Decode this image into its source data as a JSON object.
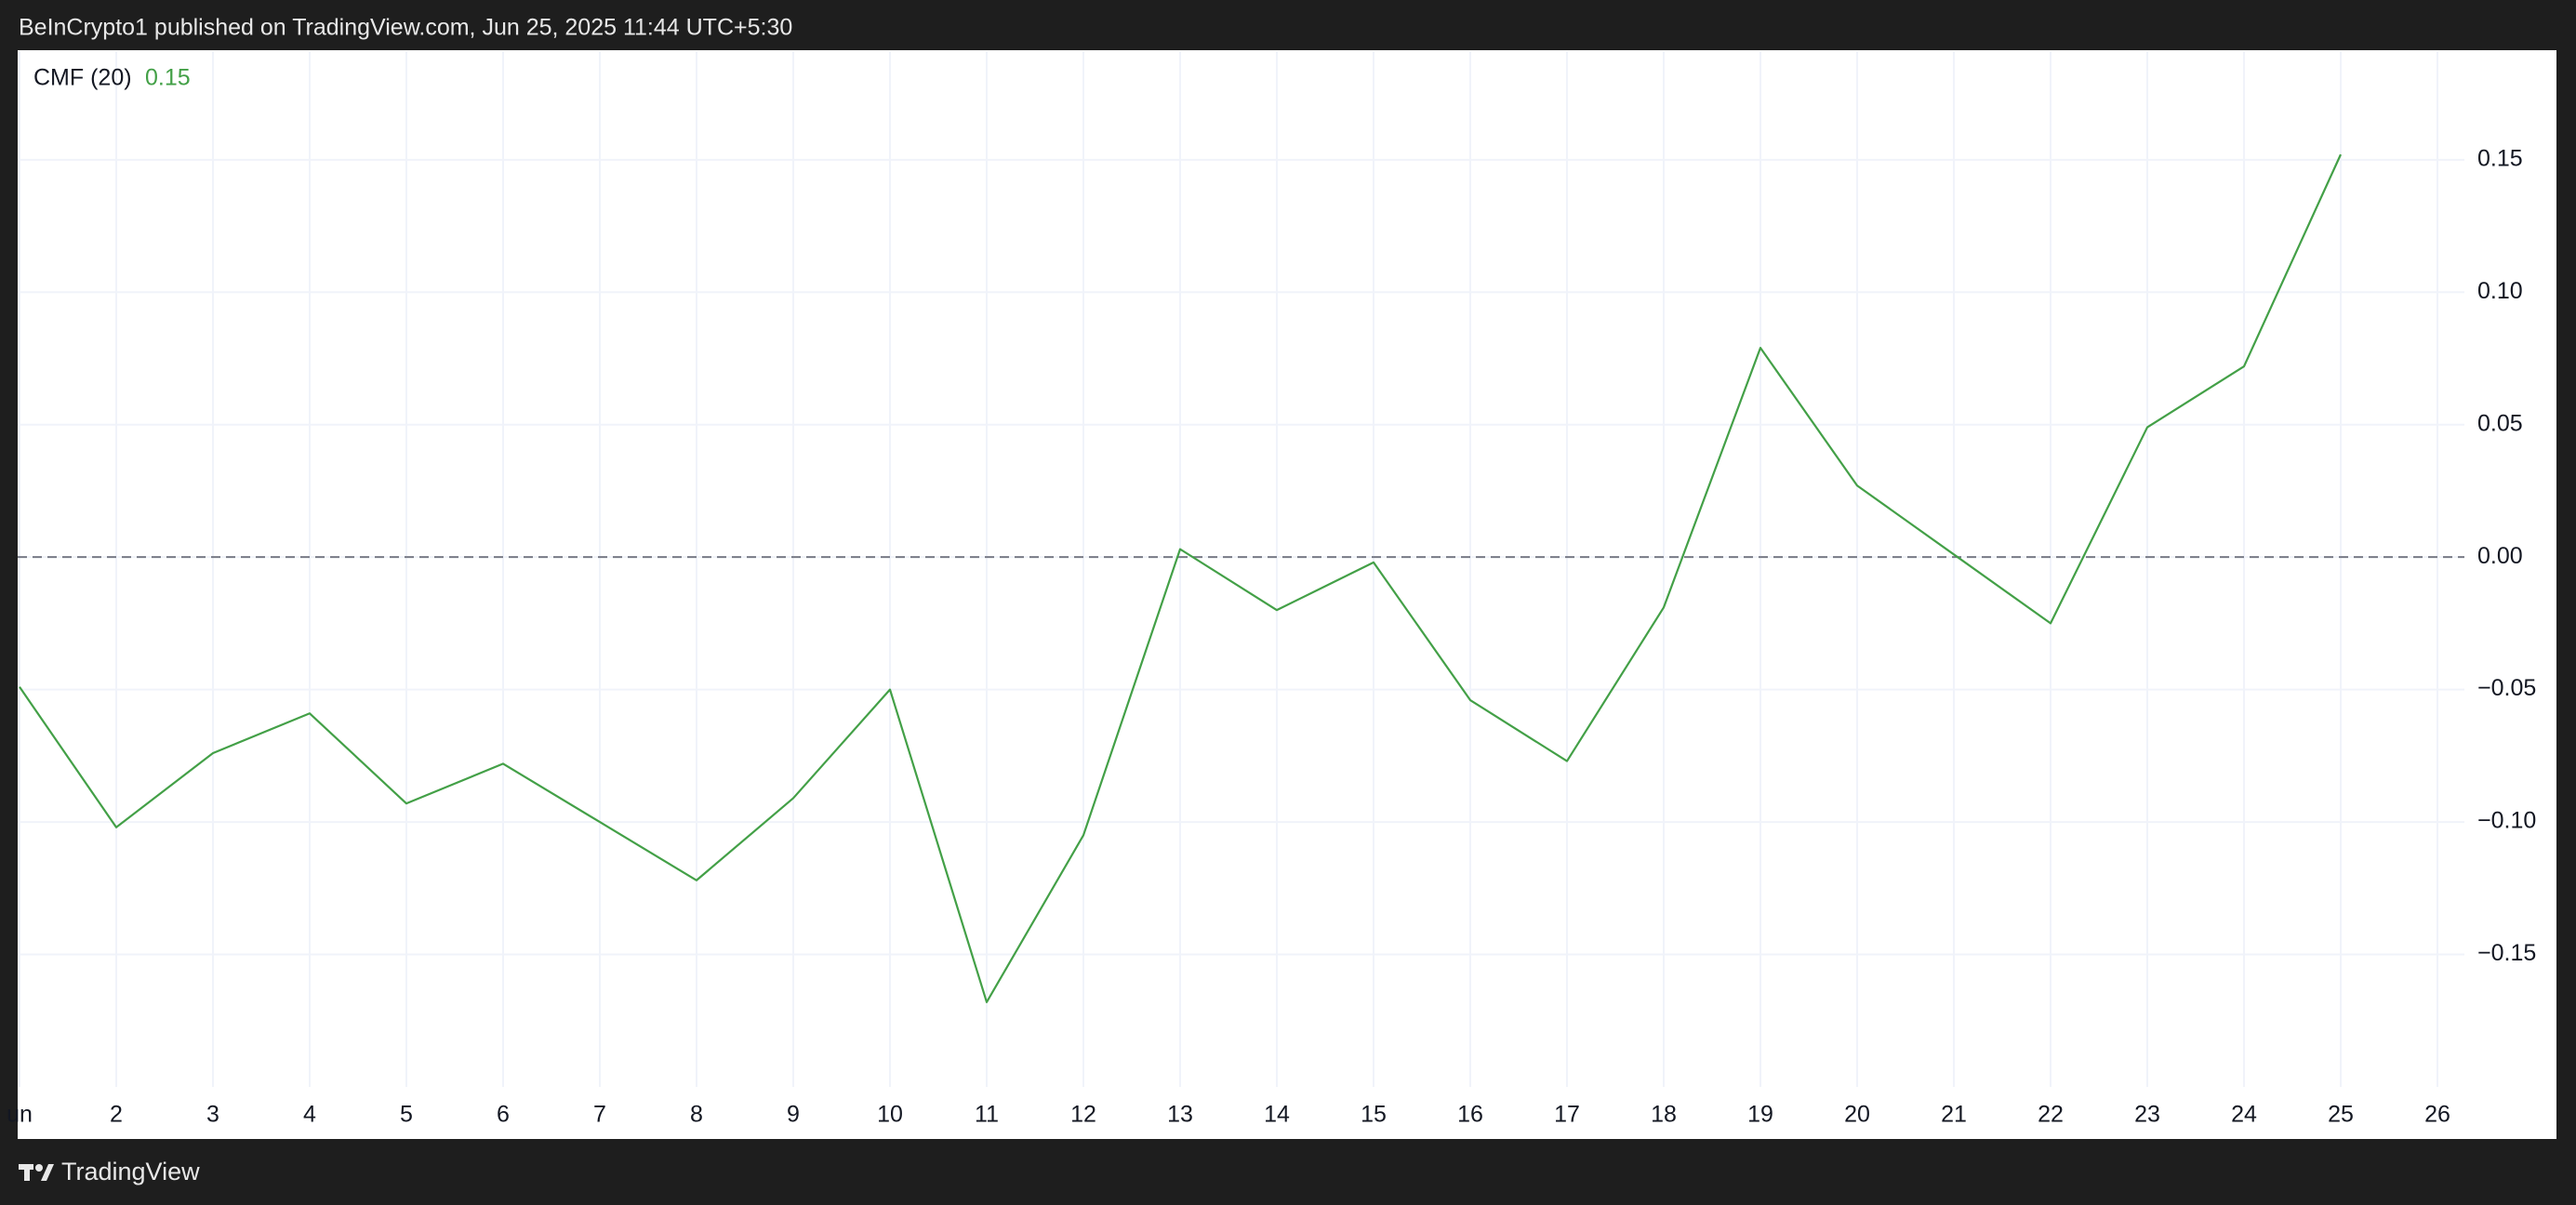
{
  "header": {
    "title": "BeInCrypto1 published on TradingView.com, Jun 25, 2025 11:44 UTC+5:30"
  },
  "footer": {
    "brand": "TradingView"
  },
  "chart_data": {
    "type": "line",
    "indicator": "CMF (20)",
    "legend_value": 0.15,
    "categories": [
      "un",
      "2",
      "3",
      "4",
      "5",
      "6",
      "7",
      "8",
      "9",
      "10",
      "11",
      "12",
      "13",
      "14",
      "15",
      "16",
      "17",
      "18",
      "19",
      "20",
      "21",
      "22",
      "23",
      "24",
      "25",
      "26"
    ],
    "series": [
      {
        "name": "CMF (20)",
        "color": "#43a047",
        "values": [
          -0.049,
          -0.102,
          -0.074,
          -0.059,
          -0.093,
          -0.078,
          -0.1,
          -0.122,
          -0.091,
          -0.05,
          -0.168,
          -0.105,
          0.003,
          -0.02,
          -0.002,
          -0.054,
          -0.077,
          -0.019,
          0.079,
          0.027,
          0.001,
          -0.025,
          0.049,
          0.072,
          0.152,
          null
        ]
      }
    ],
    "ylim": [
      -0.2,
      0.191
    ],
    "yticks": [
      0.15,
      {
        "value": 0.1,
        "label": "0.10"
      },
      0.05,
      {
        "value": 0,
        "label": "0.00"
      },
      {
        "value": -0.05,
        "label": "−0.05"
      },
      {
        "value": -0.1,
        "label": "−0.10"
      },
      {
        "value": -0.15,
        "label": "−0.15"
      }
    ],
    "reference_line": 0,
    "grid": true
  }
}
